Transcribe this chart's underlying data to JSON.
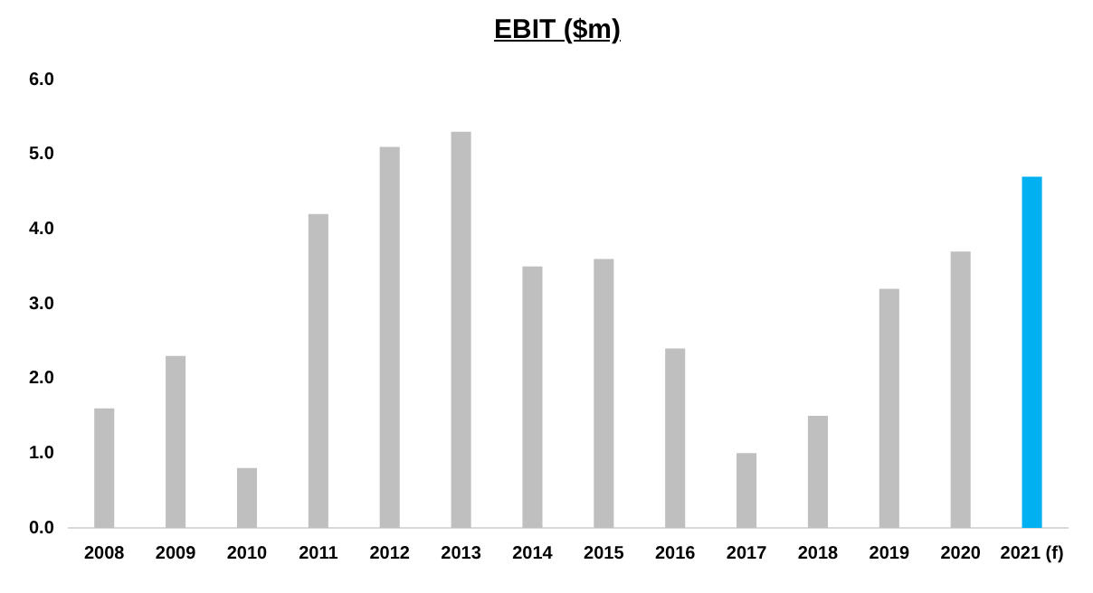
{
  "chart_data": {
    "type": "bar",
    "title": "EBIT ($m)",
    "categories": [
      "2008",
      "2009",
      "2010",
      "2011",
      "2012",
      "2013",
      "2014",
      "2015",
      "2016",
      "2017",
      "2018",
      "2019",
      "2020",
      "2021 (f)"
    ],
    "values": [
      1.6,
      2.3,
      0.8,
      4.2,
      5.1,
      5.3,
      3.5,
      3.6,
      2.4,
      1.0,
      1.5,
      3.2,
      3.7,
      4.7
    ],
    "colors": [
      "#bfbfbf",
      "#bfbfbf",
      "#bfbfbf",
      "#bfbfbf",
      "#bfbfbf",
      "#bfbfbf",
      "#bfbfbf",
      "#bfbfbf",
      "#bfbfbf",
      "#bfbfbf",
      "#bfbfbf",
      "#bfbfbf",
      "#bfbfbf",
      "#00b0f0"
    ],
    "ylim": [
      0,
      6
    ],
    "yticks": [
      {
        "value": 0,
        "label": "0.0"
      },
      {
        "value": 1,
        "label": "1.0"
      },
      {
        "value": 2,
        "label": "2.0"
      },
      {
        "value": 3,
        "label": "3.0"
      },
      {
        "value": 4,
        "label": "4.0"
      },
      {
        "value": 5,
        "label": "5.0"
      },
      {
        "value": 6,
        "label": "6.0"
      }
    ],
    "grid": false,
    "legend": false
  }
}
